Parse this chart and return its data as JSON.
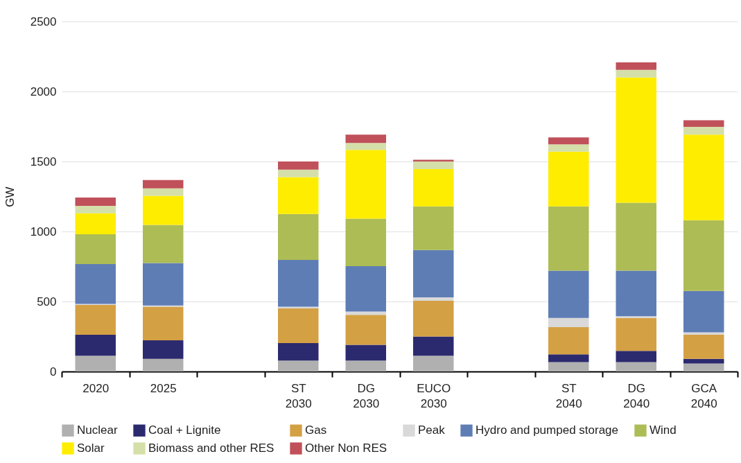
{
  "chart_data": {
    "type": "bar",
    "stacked": true,
    "ylabel": "GW",
    "categories": [
      "2020",
      "2025",
      null,
      "ST 2030",
      "DG 2030",
      "EUCO 2030",
      null,
      "ST 2040",
      "DG 2040",
      "GCA 2040"
    ],
    "series": [
      {
        "name": "Nuclear",
        "color": "#b0b0b0",
        "values": [
          113,
          90,
          null,
          78,
          78,
          113,
          null,
          67,
          67,
          57
        ]
      },
      {
        "name": "Coal + Lignite",
        "color": "#2c2a6e",
        "values": [
          149,
          133,
          null,
          125,
          112,
          137,
          null,
          55,
          80,
          33
        ]
      },
      {
        "name": "Gas",
        "color": "#d4a044",
        "values": [
          213,
          240,
          null,
          247,
          215,
          255,
          null,
          195,
          236,
          172
        ]
      },
      {
        "name": "Peak",
        "color": "#d9d9d9",
        "values": [
          8,
          9,
          null,
          13,
          23,
          25,
          null,
          66,
          12,
          18
        ]
      },
      {
        "name": "Hydro and pumped storage",
        "color": "#5f7db5",
        "values": [
          284,
          303,
          null,
          334,
          325,
          337,
          null,
          337,
          325,
          295
        ]
      },
      {
        "name": "Wind",
        "color": "#adbc55",
        "values": [
          213,
          272,
          null,
          328,
          339,
          313,
          null,
          460,
          485,
          505
        ]
      },
      {
        "name": "Solar",
        "color": "#ffed00",
        "values": [
          150,
          208,
          null,
          263,
          491,
          265,
          null,
          390,
          895,
          612
        ]
      },
      {
        "name": "Biomass and other RES",
        "color": "#d5dfa9",
        "values": [
          53,
          53,
          null,
          54,
          50,
          55,
          null,
          53,
          55,
          55
        ]
      },
      {
        "name": "Other Non RES",
        "color": "#c0505a",
        "values": [
          59,
          59,
          null,
          58,
          59,
          12,
          null,
          49,
          53,
          48
        ]
      }
    ],
    "ylim": [
      0,
      2500
    ],
    "yticks": [
      0,
      500,
      1000,
      1500,
      2000,
      2500
    ],
    "grid": "y",
    "legend": "bottom"
  }
}
